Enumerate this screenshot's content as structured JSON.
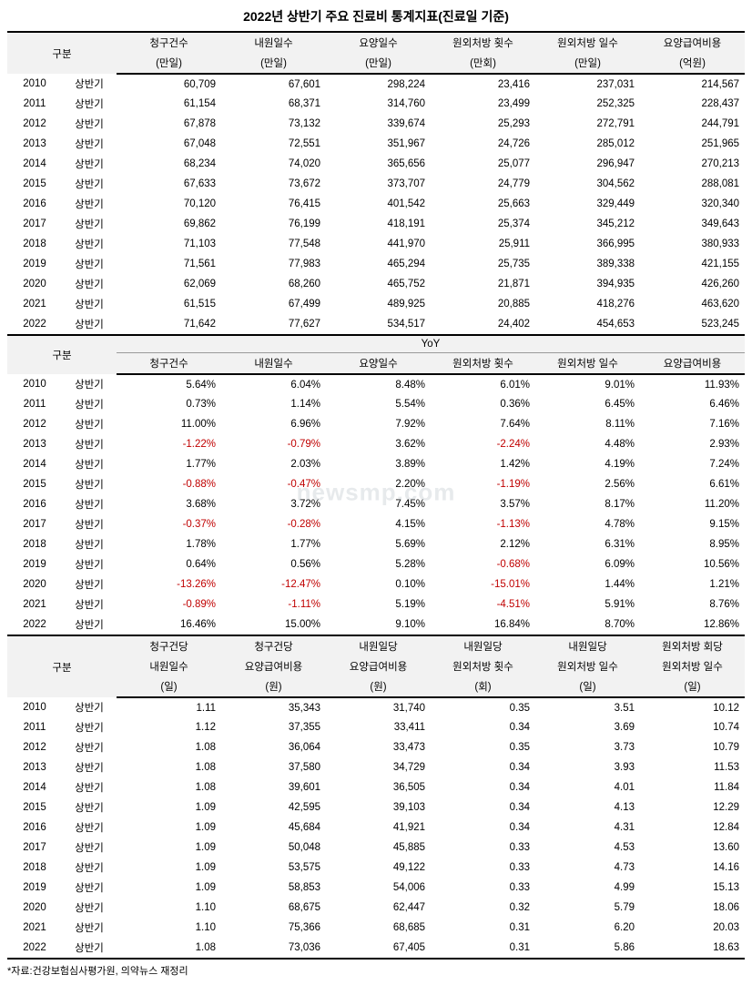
{
  "title": "2022년 상반기 주요 진료비 통계지표(진료일 기준)",
  "watermark": "newsmp.com",
  "source": "*자료:건강보험심사평가원, 의약뉴스 재정리",
  "half_label": "상반기",
  "sec1": {
    "group_label": "구분",
    "cols": [
      {
        "l1": "청구건수",
        "l2": "(만일)"
      },
      {
        "l1": "내원일수",
        "l2": "(만일)"
      },
      {
        "l1": "요양일수",
        "l2": "(만일)"
      },
      {
        "l1": "원외처방 횟수",
        "l2": "(만회)"
      },
      {
        "l1": "원외처방 일수",
        "l2": "(만일)"
      },
      {
        "l1": "요양급여비용",
        "l2": "(억원)"
      }
    ],
    "rows": [
      {
        "y": "2010",
        "v": [
          "60,709",
          "67,601",
          "298,224",
          "23,416",
          "237,031",
          "214,567"
        ]
      },
      {
        "y": "2011",
        "v": [
          "61,154",
          "68,371",
          "314,760",
          "23,499",
          "252,325",
          "228,437"
        ]
      },
      {
        "y": "2012",
        "v": [
          "67,878",
          "73,132",
          "339,674",
          "25,293",
          "272,791",
          "244,791"
        ]
      },
      {
        "y": "2013",
        "v": [
          "67,048",
          "72,551",
          "351,967",
          "24,726",
          "285,012",
          "251,965"
        ]
      },
      {
        "y": "2014",
        "v": [
          "68,234",
          "74,020",
          "365,656",
          "25,077",
          "296,947",
          "270,213"
        ]
      },
      {
        "y": "2015",
        "v": [
          "67,633",
          "73,672",
          "373,707",
          "24,779",
          "304,562",
          "288,081"
        ]
      },
      {
        "y": "2016",
        "v": [
          "70,120",
          "76,415",
          "401,542",
          "25,663",
          "329,449",
          "320,340"
        ]
      },
      {
        "y": "2017",
        "v": [
          "69,862",
          "76,199",
          "418,191",
          "25,374",
          "345,212",
          "349,643"
        ]
      },
      {
        "y": "2018",
        "v": [
          "71,103",
          "77,548",
          "441,970",
          "25,911",
          "366,995",
          "380,933"
        ]
      },
      {
        "y": "2019",
        "v": [
          "71,561",
          "77,983",
          "465,294",
          "25,735",
          "389,338",
          "421,155"
        ]
      },
      {
        "y": "2020",
        "v": [
          "62,069",
          "68,260",
          "465,752",
          "21,871",
          "394,935",
          "426,260"
        ]
      },
      {
        "y": "2021",
        "v": [
          "61,515",
          "67,499",
          "489,925",
          "20,885",
          "418,276",
          "463,620"
        ]
      },
      {
        "y": "2022",
        "v": [
          "71,642",
          "77,627",
          "534,517",
          "24,402",
          "454,653",
          "523,245"
        ]
      }
    ]
  },
  "sec2": {
    "group_label": "구분",
    "yoy_label": "YoY",
    "cols": [
      "청구건수",
      "내원일수",
      "요양일수",
      "원외처방 횟수",
      "원외처방 일수",
      "요양급여비용"
    ],
    "rows": [
      {
        "y": "2010",
        "v": [
          {
            "t": "5.64%"
          },
          {
            "t": "6.04%"
          },
          {
            "t": "8.48%"
          },
          {
            "t": "6.01%"
          },
          {
            "t": "9.01%"
          },
          {
            "t": "11.93%"
          }
        ]
      },
      {
        "y": "2011",
        "v": [
          {
            "t": "0.73%"
          },
          {
            "t": "1.14%"
          },
          {
            "t": "5.54%"
          },
          {
            "t": "0.36%"
          },
          {
            "t": "6.45%"
          },
          {
            "t": "6.46%"
          }
        ]
      },
      {
        "y": "2012",
        "v": [
          {
            "t": "11.00%"
          },
          {
            "t": "6.96%"
          },
          {
            "t": "7.92%"
          },
          {
            "t": "7.64%"
          },
          {
            "t": "8.11%"
          },
          {
            "t": "7.16%"
          }
        ]
      },
      {
        "y": "2013",
        "v": [
          {
            "t": "-1.22%",
            "n": true
          },
          {
            "t": "-0.79%",
            "n": true
          },
          {
            "t": "3.62%"
          },
          {
            "t": "-2.24%",
            "n": true
          },
          {
            "t": "4.48%"
          },
          {
            "t": "2.93%"
          }
        ]
      },
      {
        "y": "2014",
        "v": [
          {
            "t": "1.77%"
          },
          {
            "t": "2.03%"
          },
          {
            "t": "3.89%"
          },
          {
            "t": "1.42%"
          },
          {
            "t": "4.19%"
          },
          {
            "t": "7.24%"
          }
        ]
      },
      {
        "y": "2015",
        "v": [
          {
            "t": "-0.88%",
            "n": true
          },
          {
            "t": "-0.47%",
            "n": true
          },
          {
            "t": "2.20%"
          },
          {
            "t": "-1.19%",
            "n": true
          },
          {
            "t": "2.56%"
          },
          {
            "t": "6.61%"
          }
        ]
      },
      {
        "y": "2016",
        "v": [
          {
            "t": "3.68%"
          },
          {
            "t": "3.72%"
          },
          {
            "t": "7.45%"
          },
          {
            "t": "3.57%"
          },
          {
            "t": "8.17%"
          },
          {
            "t": "11.20%"
          }
        ]
      },
      {
        "y": "2017",
        "v": [
          {
            "t": "-0.37%",
            "n": true
          },
          {
            "t": "-0.28%",
            "n": true
          },
          {
            "t": "4.15%"
          },
          {
            "t": "-1.13%",
            "n": true
          },
          {
            "t": "4.78%"
          },
          {
            "t": "9.15%"
          }
        ]
      },
      {
        "y": "2018",
        "v": [
          {
            "t": "1.78%"
          },
          {
            "t": "1.77%"
          },
          {
            "t": "5.69%"
          },
          {
            "t": "2.12%"
          },
          {
            "t": "6.31%"
          },
          {
            "t": "8.95%"
          }
        ]
      },
      {
        "y": "2019",
        "v": [
          {
            "t": "0.64%"
          },
          {
            "t": "0.56%"
          },
          {
            "t": "5.28%"
          },
          {
            "t": "-0.68%",
            "n": true
          },
          {
            "t": "6.09%"
          },
          {
            "t": "10.56%"
          }
        ]
      },
      {
        "y": "2020",
        "v": [
          {
            "t": "-13.26%",
            "n": true
          },
          {
            "t": "-12.47%",
            "n": true
          },
          {
            "t": "0.10%"
          },
          {
            "t": "-15.01%",
            "n": true
          },
          {
            "t": "1.44%"
          },
          {
            "t": "1.21%"
          }
        ]
      },
      {
        "y": "2021",
        "v": [
          {
            "t": "-0.89%",
            "n": true
          },
          {
            "t": "-1.11%",
            "n": true
          },
          {
            "t": "5.19%"
          },
          {
            "t": "-4.51%",
            "n": true
          },
          {
            "t": "5.91%"
          },
          {
            "t": "8.76%"
          }
        ]
      },
      {
        "y": "2022",
        "v": [
          {
            "t": "16.46%"
          },
          {
            "t": "15.00%"
          },
          {
            "t": "9.10%"
          },
          {
            "t": "16.84%"
          },
          {
            "t": "8.70%"
          },
          {
            "t": "12.86%"
          }
        ]
      }
    ]
  },
  "sec3": {
    "group_label": "구분",
    "cols": [
      {
        "l1": "청구건당",
        "l2": "내원일수",
        "l3": "(일)"
      },
      {
        "l1": "청구건당",
        "l2": "요양급여비용",
        "l3": "(원)"
      },
      {
        "l1": "내원일당",
        "l2": "요양급여비용",
        "l3": "(원)"
      },
      {
        "l1": "내원일당",
        "l2": "원외처방 횟수",
        "l3": "(회)"
      },
      {
        "l1": "내원일당",
        "l2": "원외처방 일수",
        "l3": "(일)"
      },
      {
        "l1": "원외처방 회당",
        "l2": "원외처방 일수",
        "l3": "(일)"
      }
    ],
    "rows": [
      {
        "y": "2010",
        "v": [
          "1.11",
          "35,343",
          "31,740",
          "0.35",
          "3.51",
          "10.12"
        ]
      },
      {
        "y": "2011",
        "v": [
          "1.12",
          "37,355",
          "33,411",
          "0.34",
          "3.69",
          "10.74"
        ]
      },
      {
        "y": "2012",
        "v": [
          "1.08",
          "36,064",
          "33,473",
          "0.35",
          "3.73",
          "10.79"
        ]
      },
      {
        "y": "2013",
        "v": [
          "1.08",
          "37,580",
          "34,729",
          "0.34",
          "3.93",
          "11.53"
        ]
      },
      {
        "y": "2014",
        "v": [
          "1.08",
          "39,601",
          "36,505",
          "0.34",
          "4.01",
          "11.84"
        ]
      },
      {
        "y": "2015",
        "v": [
          "1.09",
          "42,595",
          "39,103",
          "0.34",
          "4.13",
          "12.29"
        ]
      },
      {
        "y": "2016",
        "v": [
          "1.09",
          "45,684",
          "41,921",
          "0.34",
          "4.31",
          "12.84"
        ]
      },
      {
        "y": "2017",
        "v": [
          "1.09",
          "50,048",
          "45,885",
          "0.33",
          "4.53",
          "13.60"
        ]
      },
      {
        "y": "2018",
        "v": [
          "1.09",
          "53,575",
          "49,122",
          "0.33",
          "4.73",
          "14.16"
        ]
      },
      {
        "y": "2019",
        "v": [
          "1.09",
          "58,853",
          "54,006",
          "0.33",
          "4.99",
          "15.13"
        ]
      },
      {
        "y": "2020",
        "v": [
          "1.10",
          "68,675",
          "62,447",
          "0.32",
          "5.79",
          "18.06"
        ]
      },
      {
        "y": "2021",
        "v": [
          "1.10",
          "75,366",
          "68,685",
          "0.31",
          "6.20",
          "20.03"
        ]
      },
      {
        "y": "2022",
        "v": [
          "1.08",
          "73,036",
          "67,405",
          "0.31",
          "5.86",
          "18.63"
        ]
      }
    ]
  }
}
